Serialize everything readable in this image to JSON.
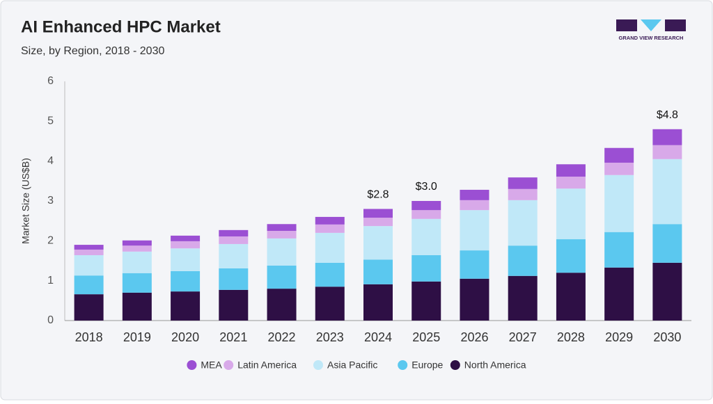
{
  "chart_data": {
    "type": "stacked_bar",
    "title": "AI Enhanced HPC Market",
    "subtitle": "Size, by Region, 2018 - 2030",
    "logo_text": "GRAND VIEW RESEARCH",
    "y_label": "Market Size (US$B)",
    "categories": [
      "2018",
      "2019",
      "2020",
      "2021",
      "2022",
      "2023",
      "2024",
      "2025",
      "2026",
      "2027",
      "2028",
      "2029",
      "2030"
    ],
    "series": [
      {
        "name": "North America",
        "color": "#2e0f45",
        "values": [
          0.66,
          0.7,
          0.73,
          0.77,
          0.8,
          0.85,
          0.91,
          0.98,
          1.05,
          1.12,
          1.2,
          1.33,
          1.45
        ]
      },
      {
        "name": "Europe",
        "color": "#5bc8ef",
        "values": [
          0.47,
          0.49,
          0.51,
          0.54,
          0.58,
          0.6,
          0.62,
          0.66,
          0.71,
          0.76,
          0.84,
          0.89,
          0.97
        ]
      },
      {
        "name": "Asia Pacific",
        "color": "#c0e8f8",
        "values": [
          0.51,
          0.54,
          0.57,
          0.61,
          0.68,
          0.75,
          0.84,
          0.91,
          1.01,
          1.14,
          1.27,
          1.43,
          1.63
        ]
      },
      {
        "name": "Latin America",
        "color": "#d8a9e9",
        "values": [
          0.14,
          0.15,
          0.18,
          0.19,
          0.19,
          0.21,
          0.21,
          0.22,
          0.25,
          0.28,
          0.3,
          0.31,
          0.35
        ]
      },
      {
        "name": "MEA",
        "color": "#9b4fd3",
        "values": [
          0.12,
          0.13,
          0.14,
          0.16,
          0.17,
          0.19,
          0.22,
          0.23,
          0.26,
          0.29,
          0.31,
          0.37,
          0.4
        ]
      }
    ],
    "totals": [
      null,
      null,
      null,
      null,
      null,
      null,
      2.8,
      3.0,
      null,
      null,
      null,
      null,
      4.8
    ],
    "total_labels": [
      null,
      null,
      null,
      null,
      null,
      null,
      "$2.8",
      "$3.0",
      null,
      null,
      null,
      null,
      "$4.8"
    ],
    "ylim": [
      0,
      6
    ],
    "yticks": [
      0,
      1,
      2,
      3,
      4,
      5,
      6
    ],
    "grid": false
  }
}
